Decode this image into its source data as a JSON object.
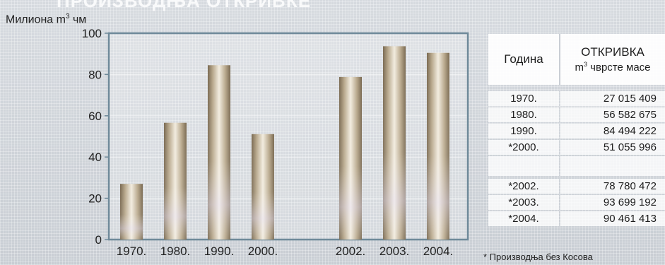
{
  "page": {
    "top_title": "ПРОИЗВОДЊА ОТКРИВКЕ",
    "unit_label_prefix": "Милиона m",
    "unit_label_sup": "3",
    "unit_label_suffix": " чм",
    "footnote": "* Производња без Косова"
  },
  "colors": {
    "bar_dark": "#7a6a52",
    "bar_mid": "#b8a88c",
    "bar_light": "#f2ecdf",
    "frame": "#6f8a9a"
  },
  "chart_data": {
    "type": "bar",
    "categories": [
      "1970.",
      "1980.",
      "1990.",
      "2000.",
      "2002.",
      "2003.",
      "2004."
    ],
    "values": [
      27,
      56.6,
      84.5,
      51.1,
      78.8,
      93.7,
      90.5
    ],
    "ylim": [
      0,
      100
    ],
    "yticks": [
      "0",
      "20",
      "40",
      "60",
      "80",
      "100"
    ],
    "grid": true
  },
  "table": {
    "header_year": "Година",
    "header_value_title": "ОТКРИВКА",
    "header_value_sub_prefix": "m",
    "header_value_sub_sup": "3",
    "header_value_sub_suffix": " чврсте масе",
    "rows_a": [
      {
        "year": "1970.",
        "value": "27 015 409"
      },
      {
        "year": "1980.",
        "value": "56 582 675"
      },
      {
        "year": "1990.",
        "value": "84 494 222"
      },
      {
        "year": "*2000.",
        "value": "51 055 996"
      }
    ],
    "rows_b": [
      {
        "year": "*2002.",
        "value": "78 780 472"
      },
      {
        "year": "*2003.",
        "value": "93 699 192"
      },
      {
        "year": "*2004.",
        "value": "90 461 413"
      }
    ]
  }
}
